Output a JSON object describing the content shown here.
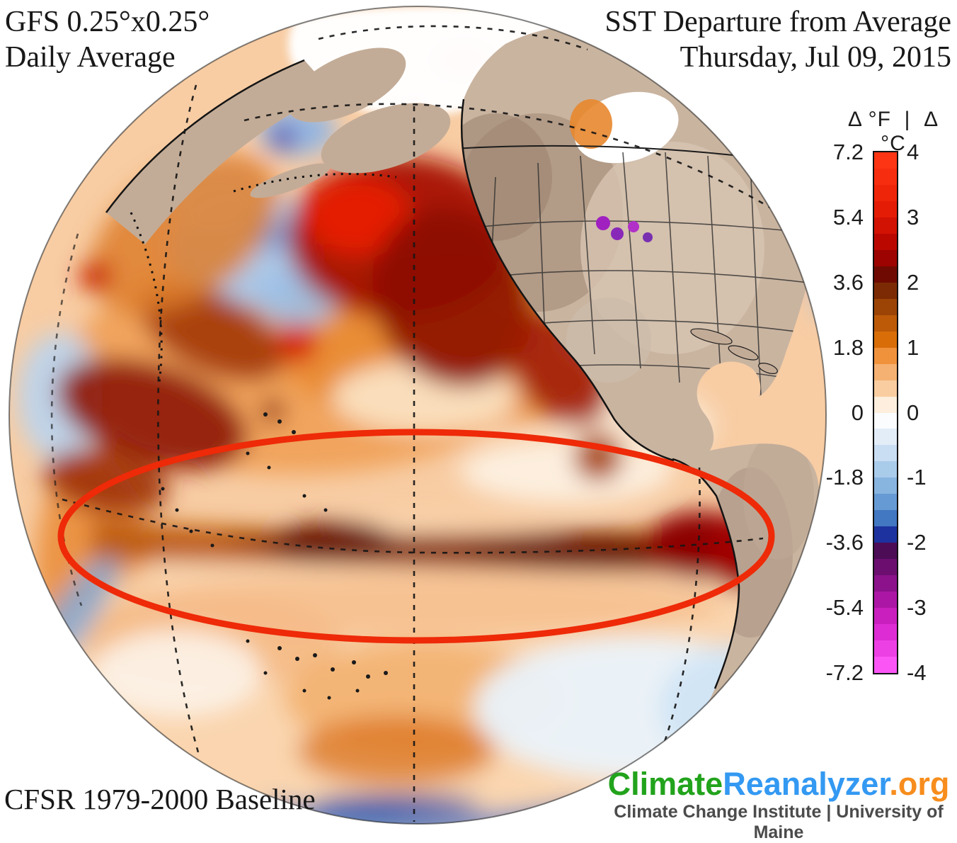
{
  "header": {
    "top_left_line1": "GFS 0.25°x0.25°",
    "top_left_line2": "Daily Average",
    "top_right_line1": "SST Departure from Average",
    "top_right_line2": "Thursday, Jul 09, 2015"
  },
  "footer": {
    "baseline_note": "CFSR 1979-2000 Baseline"
  },
  "logo": {
    "part1": "Climate",
    "part2": "Reanalyzer",
    "part3": ".org",
    "color1": "#22a31c",
    "color2": "#3399f2",
    "color3": "#f78d1d",
    "subtitle": "Climate Change Institute | University of Maine"
  },
  "colorbar": {
    "header_f": "Δ °F",
    "separator": "|",
    "header_c": "Δ °C",
    "ticks_f": [
      "7.2",
      "5.4",
      "3.6",
      "1.8",
      "0",
      "-1.8",
      "-3.6",
      "-5.4",
      "-7.2"
    ],
    "ticks_c": [
      "4",
      "3",
      "2",
      "1",
      "0",
      "-1",
      "-2",
      "-3",
      "-4"
    ],
    "unit_range_f": [
      -7.2,
      7.2
    ],
    "unit_range_c": [
      -4,
      4
    ],
    "segments": [
      "#fd3514",
      "#f72d0f",
      "#ef250a",
      "#e41c06",
      "#d21203",
      "#ba0801",
      "#9d0300",
      "#6f0a02",
      "#7c2a04",
      "#9c4406",
      "#bc5a08",
      "#d96e08",
      "#f0923c",
      "#f5b172",
      "#f9cd9f",
      "#fdeedd",
      "#fafcfe",
      "#e2edf8",
      "#c9def3",
      "#aacceb",
      "#88b4e0",
      "#669ad4",
      "#4277c2",
      "#1d329e",
      "#4c0c56",
      "#6b0e6f",
      "#8b128b",
      "#ac16a5",
      "#c91fbe",
      "#dd2cd3",
      "#ec40e5",
      "#fb55f6"
    ]
  },
  "annotation": {
    "label": "el-nino-equatorial-warm-region",
    "color": "#ee2a08"
  },
  "map_palette": {
    "ocean_base": "#f8cda4",
    "warm_anomaly_strong": "#8b0000",
    "warm_anomaly": "#e8872e",
    "cool_anomaly": "#a5c9ec",
    "land": "#c9b4a0",
    "sea_ice": "#ffffff"
  }
}
